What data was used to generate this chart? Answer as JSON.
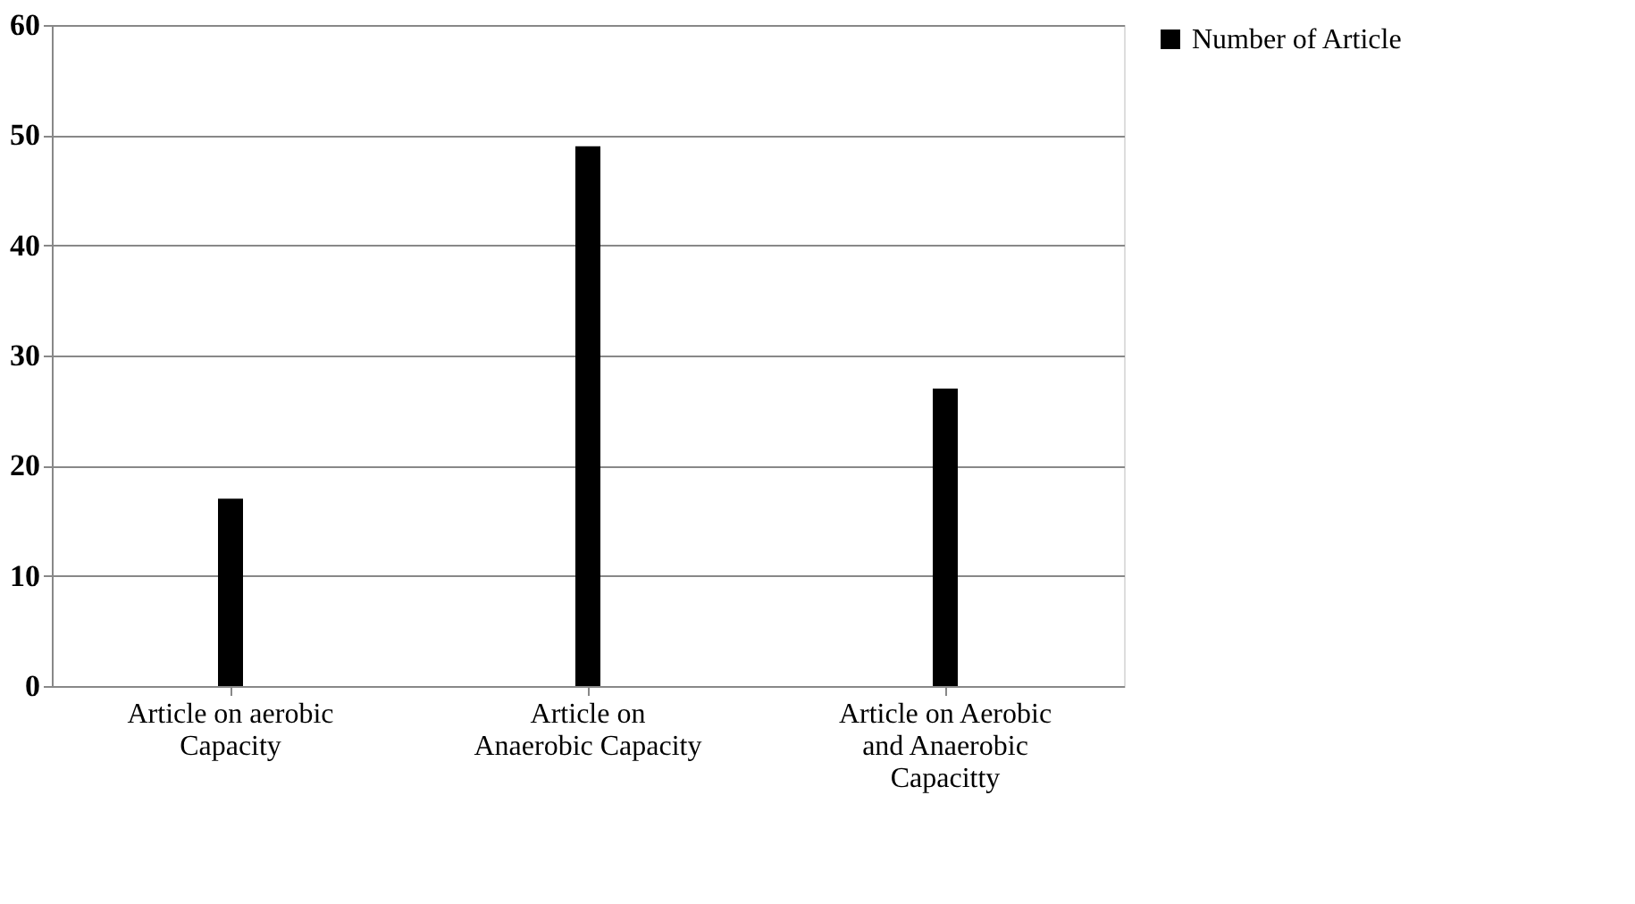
{
  "chart_data": {
    "type": "bar",
    "categories": [
      "Article on aerobic Capacity",
      "Article on Anaerobic Capacity",
      "Article on Aerobic and Anaerobic Capacitty"
    ],
    "series": [
      {
        "name": "Number of Article",
        "color": "#000000",
        "values": [
          17,
          49,
          27
        ]
      }
    ],
    "ylim": [
      0,
      60
    ],
    "yticks": [
      0,
      10,
      20,
      30,
      40,
      50,
      60
    ],
    "grid": "y",
    "legend": "right"
  }
}
